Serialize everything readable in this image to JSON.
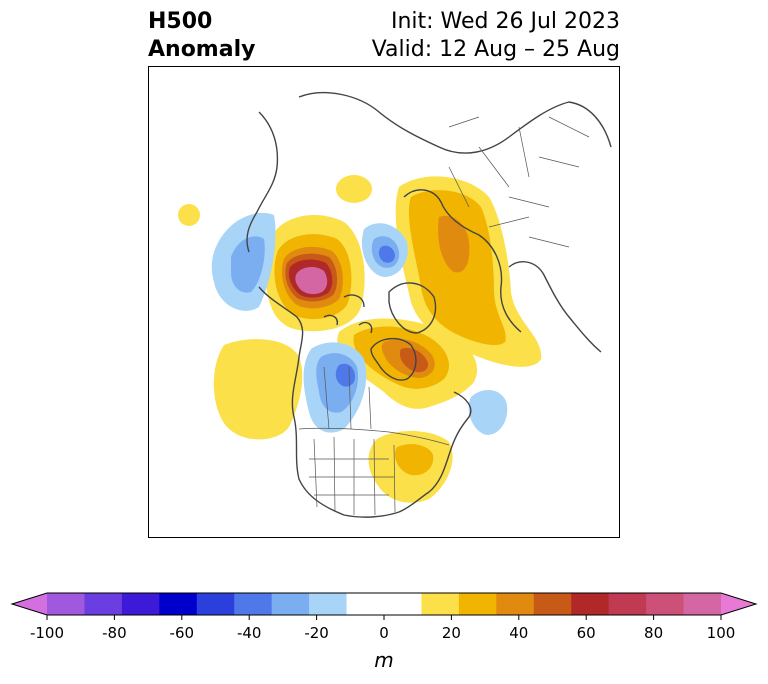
{
  "header": {
    "title_line1": "H500",
    "title_line2": "Anomaly",
    "init_text": "Init: Wed 26 Jul 2023",
    "valid_text": "Valid: 12 Aug – 25 Aug"
  },
  "colorbar": {
    "unit": "m",
    "ticks": [
      "-100",
      "-80",
      "-60",
      "-40",
      "-20",
      "0",
      "20",
      "40",
      "60",
      "80",
      "100"
    ],
    "min_color": "#d46fe0",
    "max_color": "#e87ad6",
    "colors": [
      "#a058de",
      "#6a3ee0",
      "#3c1ad8",
      "#0000cd",
      "#2a3fdc",
      "#4f78e8",
      "#7aaef0",
      "#a8d4f8",
      "#ffffff",
      "#ffffff",
      "#fbe04a",
      "#f1b400",
      "#e08a10",
      "#c85a18",
      "#b02828",
      "#c03a52",
      "#cc5078",
      "#d466a4"
    ]
  },
  "map": {
    "anomaly_colors": {
      "neg_light": "#a8d4f8",
      "neg_mid": "#7aaef0",
      "neg_strong": "#4f78e8",
      "pos_light": "#fbe04a",
      "pos_mid": "#f1b400",
      "pos_strong": "#e08a10",
      "pos_stronger": "#c85a18",
      "pos_max1": "#b02828",
      "pos_max2": "#d466a4"
    }
  }
}
